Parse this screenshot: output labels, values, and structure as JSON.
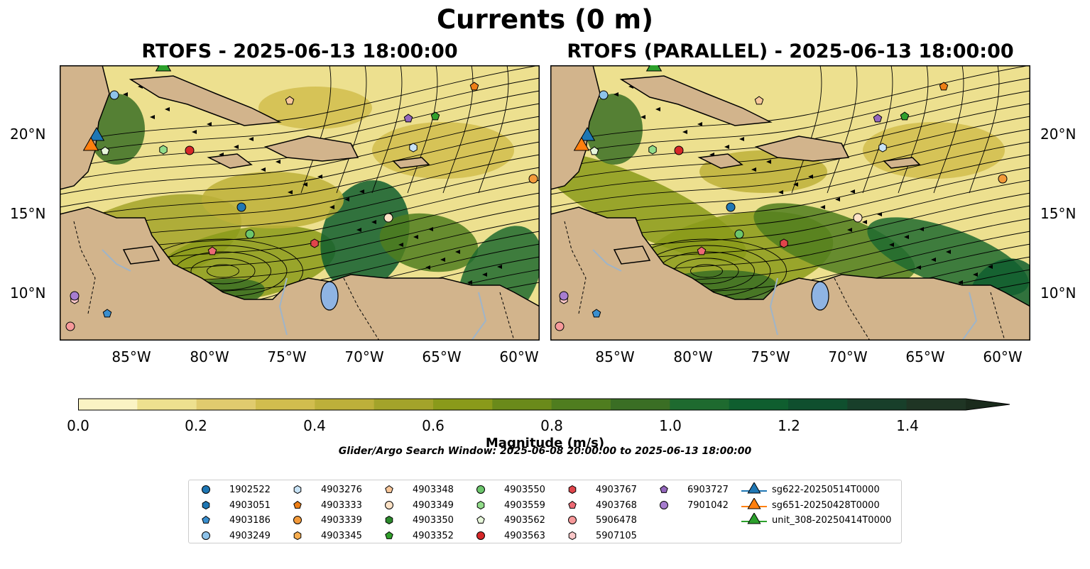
{
  "title": "Currents (0 m)",
  "panels": [
    {
      "id": "left",
      "subtitle": "RTOFS - 2025-06-13 18:00:00"
    },
    {
      "id": "right",
      "subtitle": "RTOFS (PARALLEL) - 2025-06-13 18:00:00"
    }
  ],
  "axes": {
    "lat_labels": [
      "20°N",
      "15°N",
      "10°N"
    ],
    "lon_labels": [
      "85°W",
      "80°W",
      "75°W",
      "70°W",
      "65°W",
      "60°W"
    ]
  },
  "colorbar": {
    "label": "Magnitude (m/s)",
    "ticks": [
      "0.0",
      "0.2",
      "0.4",
      "0.6",
      "0.8",
      "1.0",
      "1.2",
      "1.4"
    ],
    "colors": [
      "#faf3c4",
      "#ede08f",
      "#e0cb6e",
      "#d1bd4e",
      "#bdb03a",
      "#a3a32a",
      "#8a9a1a",
      "#6a8a1a",
      "#4f7d1f",
      "#3a6e24",
      "#1e6a2f",
      "#0f5e2f",
      "#0f4f2e",
      "#183f2a",
      "#1f3524",
      "#1a2b1c"
    ]
  },
  "search_window": "Glider/Argo Search Window: 2025-06-08 20:00:00 to 2025-06-13 18:00:00",
  "legend": {
    "items": [
      {
        "label": "1902522",
        "marker": "circle",
        "color": "#1f77b4"
      },
      {
        "label": "4903051",
        "marker": "hexagon",
        "color": "#1f77b4"
      },
      {
        "label": "4903186",
        "marker": "pentagon",
        "color": "#3a8fcf"
      },
      {
        "label": "4903249",
        "marker": "circle",
        "color": "#8ec3ea"
      },
      {
        "label": "4903276",
        "marker": "hexagon",
        "color": "#c8e3f7"
      },
      {
        "label": "4903333",
        "marker": "pentagon",
        "color": "#ee7f16"
      },
      {
        "label": "4903339",
        "marker": "circle",
        "color": "#f39a3a"
      },
      {
        "label": "4903345",
        "marker": "hexagon",
        "color": "#f7ad4f"
      },
      {
        "label": "4903348",
        "marker": "pentagon",
        "color": "#f8c79a"
      },
      {
        "label": "4903349",
        "marker": "circle",
        "color": "#fde2c6"
      },
      {
        "label": "4903350",
        "marker": "hexagon",
        "color": "#2c8a2c"
      },
      {
        "label": "4903352",
        "marker": "pentagon",
        "color": "#32a02c"
      },
      {
        "label": "4903550",
        "marker": "circle",
        "color": "#6cc66c"
      },
      {
        "label": "4903559",
        "marker": "hexagon",
        "color": "#92dc8a"
      },
      {
        "label": "4903562",
        "marker": "pentagon",
        "color": "#e7f7da"
      },
      {
        "label": "4903563",
        "marker": "circle",
        "color": "#d62728"
      },
      {
        "label": "4903767",
        "marker": "hexagon",
        "color": "#e0454b"
      },
      {
        "label": "4903768",
        "marker": "pentagon",
        "color": "#ed6a74"
      },
      {
        "label": "5906478",
        "marker": "circle",
        "color": "#f7999a"
      },
      {
        "label": "5907105",
        "marker": "hexagon",
        "color": "#fbc7c8"
      },
      {
        "label": "6903727",
        "marker": "pentagon",
        "color": "#9467bd"
      },
      {
        "label": "7901042",
        "marker": "circle",
        "color": "#a77dcf"
      },
      {
        "label": "sg622-20250514T0000",
        "marker": "triangle",
        "color": "#1f77b4"
      },
      {
        "label": "sg651-20250428T0000",
        "marker": "triangle",
        "color": "#ff7f0e"
      },
      {
        "label": "unit_308-20250414T0000",
        "marker": "triangle",
        "color": "#2ca02c"
      }
    ]
  },
  "map_colors": {
    "land": "#d2b48c",
    "lake": "#8fb4e3",
    "river": "#9fb4c8"
  }
}
